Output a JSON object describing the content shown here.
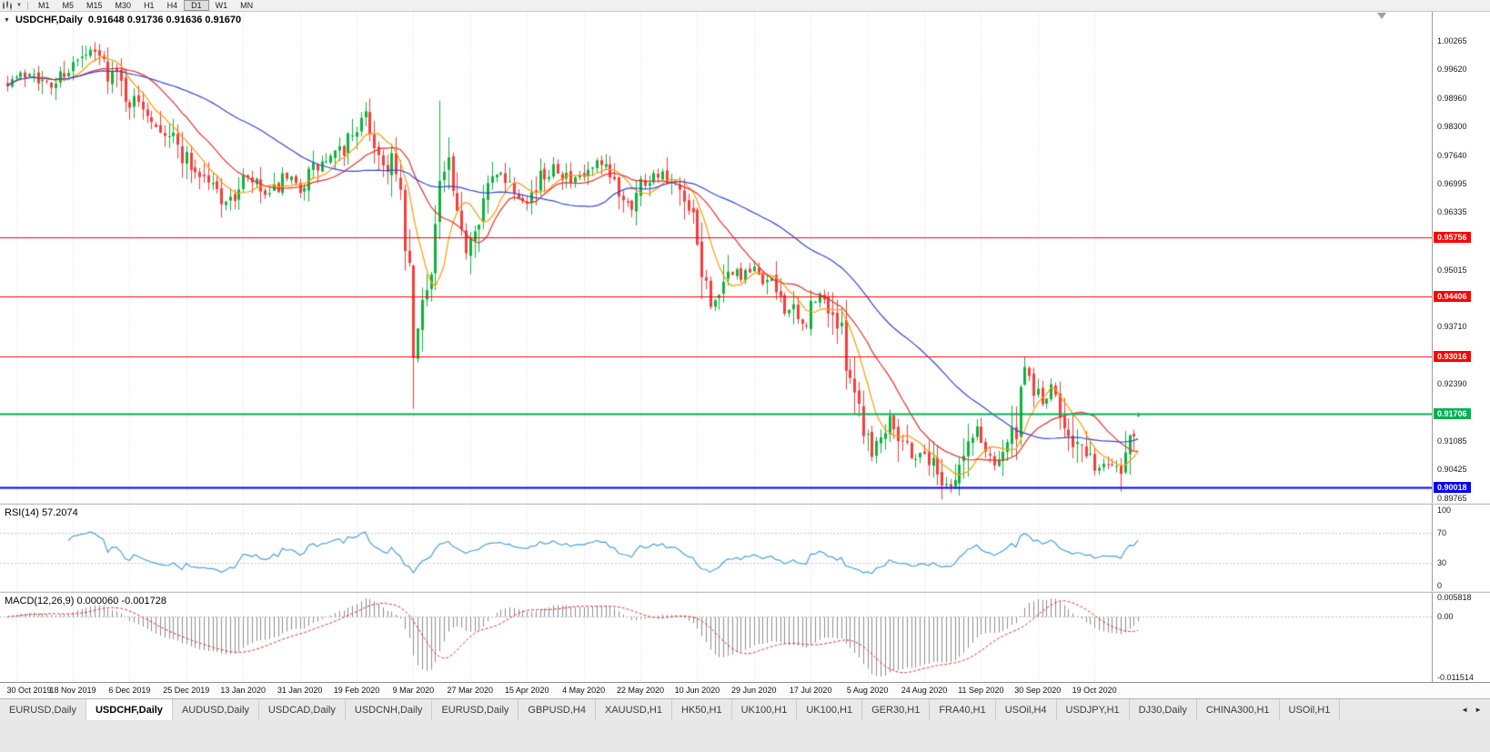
{
  "toolbar": {
    "periods": [
      "M1",
      "M5",
      "M15",
      "M30",
      "H1",
      "H4",
      "D1",
      "W1",
      "MN"
    ],
    "active_period": "D1"
  },
  "icons": {
    "collapse_arrow": "▼",
    "dropdown_arrow": "▼",
    "tab_scroll_left": "◄",
    "tab_scroll_right": "►"
  },
  "chart": {
    "title": "USDCHF,Daily",
    "ohlc_text": "0.91648 0.91736 0.91636 0.91670"
  },
  "price_axis": {
    "visible_ticks": [
      "1.00265",
      "0.99620",
      "0.98960",
      "0.98300",
      "0.97640",
      "0.96995",
      "0.96335",
      "0.95015",
      "0.93710",
      "0.92390",
      "0.91085",
      "0.90425",
      "0.89765"
    ]
  },
  "date_axis": [
    "30 Oct 2019",
    "18 Nov 2019",
    "6 Dec 2019",
    "25 Dec 2019",
    "13 Jan 2020",
    "31 Jan 2020",
    "19 Feb 2020",
    "9 Mar 2020",
    "27 Mar 2020",
    "15 Apr 2020",
    "4 May 2020",
    "22 May 2020",
    "10 Jun 2020",
    "29 Jun 2020",
    "17 Jul 2020",
    "5 Aug 2020",
    "24 Aug 2020",
    "11 Sep 2020",
    "30 Sep 2020",
    "19 Oct 2020"
  ],
  "rsi": {
    "label": "RSI(14) 57.2074",
    "value": 57.2074,
    "levels": [
      "100",
      "70",
      "30",
      "0"
    ]
  },
  "macd": {
    "label": "MACD(12,26,9) 0.000060 -0.001728",
    "axis_top": "0.005818",
    "axis_zero": "0.00",
    "axis_bottom": "-0.011514"
  },
  "tabs": {
    "items": [
      "EURUSD,Daily",
      "USDCHF,Daily",
      "AUDUSD,Daily",
      "USDCAD,Daily",
      "USDCNH,Daily",
      "EURUSD,Daily",
      "GBPUSD,H4",
      "XAUUSD,H1",
      "HK50,H1",
      "UK100,H1",
      "UK100,H1",
      "GER30,H1",
      "FRA40,H1",
      "USOil,H4",
      "USDJPY,H1",
      "DJ30,Daily",
      "CHINA300,H1",
      "USOil,H1"
    ],
    "active_index": 1
  },
  "chart_data": {
    "type": "candlestick",
    "symbol": "USDCHF",
    "timeframe": "Daily",
    "title": "USDCHF,Daily 0.91648 0.91736 0.91636 0.91670",
    "last_ohlc": {
      "open": 0.91648,
      "high": 0.91736,
      "low": 0.91636,
      "close": 0.9167
    },
    "num_candles": 260,
    "price_range": [
      0.8966,
      1.0094
    ],
    "candle_up_color": "#0db33c",
    "candle_down_color": "#f93b3b",
    "close_anchors": [
      [
        0,
        0.9935
      ],
      [
        4,
        0.995
      ],
      [
        6,
        0.9962
      ],
      [
        8,
        0.993
      ],
      [
        10,
        0.9922
      ],
      [
        13,
        0.996
      ],
      [
        16,
        0.9978
      ],
      [
        19,
        1.0
      ],
      [
        21,
        0.999
      ],
      [
        23,
        0.9958
      ],
      [
        25,
        0.9945
      ],
      [
        28,
        0.989
      ],
      [
        31,
        0.988
      ],
      [
        34,
        0.9845
      ],
      [
        37,
        0.9815
      ],
      [
        40,
        0.977
      ],
      [
        43,
        0.973
      ],
      [
        46,
        0.9705
      ],
      [
        49,
        0.967
      ],
      [
        51,
        0.9655
      ],
      [
        54,
        0.971
      ],
      [
        56,
        0.9703
      ],
      [
        58,
        0.968
      ],
      [
        60,
        0.9665
      ],
      [
        63,
        0.971
      ],
      [
        65,
        0.97
      ],
      [
        67,
        0.969
      ],
      [
        70,
        0.973
      ],
      [
        73,
        0.975
      ],
      [
        76,
        0.9765
      ],
      [
        78,
        0.98
      ],
      [
        80,
        0.9835
      ],
      [
        82,
        0.985
      ],
      [
        84,
        0.98
      ],
      [
        86,
        0.974
      ],
      [
        88,
        0.976
      ],
      [
        90,
        0.965
      ],
      [
        92,
        0.948
      ],
      [
        93,
        0.93
      ],
      [
        95,
        0.942
      ],
      [
        97,
        0.952
      ],
      [
        99,
        0.97
      ],
      [
        101,
        0.974
      ],
      [
        103,
        0.96
      ],
      [
        105,
        0.955
      ],
      [
        107,
        0.962
      ],
      [
        109,
        0.9665
      ],
      [
        111,
        0.97
      ],
      [
        113,
        0.973
      ],
      [
        115,
        0.97
      ],
      [
        117,
        0.968
      ],
      [
        119,
        0.9665
      ],
      [
        121,
        0.969
      ],
      [
        123,
        0.972
      ],
      [
        125,
        0.9745
      ],
      [
        127,
        0.973
      ],
      [
        129,
        0.97
      ],
      [
        131,
        0.971
      ],
      [
        133,
        0.972
      ],
      [
        135,
        0.9745
      ],
      [
        137,
        0.972
      ],
      [
        139,
        0.97
      ],
      [
        141,
        0.967
      ],
      [
        143,
        0.9655
      ],
      [
        145,
        0.97
      ],
      [
        147,
        0.9715
      ],
      [
        149,
        0.9725
      ],
      [
        151,
        0.97
      ],
      [
        153,
        0.9685
      ],
      [
        155,
        0.9645
      ],
      [
        157,
        0.96
      ],
      [
        158,
        0.955
      ],
      [
        160,
        0.9455
      ],
      [
        163,
        0.9425
      ],
      [
        166,
        0.9505
      ],
      [
        168,
        0.9485
      ],
      [
        171,
        0.95
      ],
      [
        174,
        0.9475
      ],
      [
        177,
        0.944
      ],
      [
        180,
        0.9395
      ],
      [
        182,
        0.937
      ],
      [
        184,
        0.941
      ],
      [
        186,
        0.944
      ],
      [
        188,
        0.942
      ],
      [
        190,
        0.938
      ],
      [
        193,
        0.927
      ],
      [
        196,
        0.915
      ],
      [
        198,
        0.909
      ],
      [
        200,
        0.912
      ],
      [
        202,
        0.917
      ],
      [
        205,
        0.911
      ],
      [
        208,
        0.907
      ],
      [
        210,
        0.9085
      ],
      [
        213,
        0.9035
      ],
      [
        216,
        0.9005
      ],
      [
        219,
        0.907
      ],
      [
        222,
        0.914
      ],
      [
        224,
        0.9085
      ],
      [
        226,
        0.906
      ],
      [
        228,
        0.909
      ],
      [
        231,
        0.913
      ],
      [
        233,
        0.926
      ],
      [
        235,
        0.9235
      ],
      [
        237,
        0.9195
      ],
      [
        239,
        0.9225
      ],
      [
        241,
        0.9175
      ],
      [
        243,
        0.914
      ],
      [
        245,
        0.91
      ],
      [
        247,
        0.9065
      ],
      [
        250,
        0.9045
      ],
      [
        253,
        0.906
      ],
      [
        255,
        0.905
      ],
      [
        256,
        0.9085
      ],
      [
        257,
        0.912
      ],
      [
        258,
        0.915
      ],
      [
        259,
        0.9167
      ]
    ],
    "forced_extremes": [
      {
        "i": 93,
        "low": 0.9182
      },
      {
        "i": 99,
        "high": 0.989
      },
      {
        "i": 216,
        "low": 0.8998
      },
      {
        "i": 233,
        "high": 0.93
      }
    ],
    "moving_averages": [
      {
        "period": 8,
        "color": "#ff9a00"
      },
      {
        "period": 18,
        "color": "#e43030"
      },
      {
        "period": 45,
        "color": "#3347cf"
      }
    ],
    "hlines": [
      {
        "value": 0.95756,
        "label": "0.95756",
        "color": "#ff0000",
        "line_width": 1
      },
      {
        "value": 0.94406,
        "label": "0.94406",
        "color": "#ff0000",
        "line_width": 1
      },
      {
        "value": 0.93016,
        "label": "0.93016",
        "color": "#ff0000",
        "line_width": 1
      },
      {
        "value": 0.91706,
        "label": "0.91706",
        "color": "#00b050",
        "line_width": 2
      },
      {
        "value": 0.90018,
        "label": "0.90018",
        "color": "#0000ff",
        "line_width": 2
      }
    ],
    "rsi_period": 14,
    "rsi_color": "#4aa0dc",
    "rsi_guides": [
      70,
      30
    ],
    "macd_params": [
      12,
      26,
      9
    ],
    "macd_hist_color": "#8c8c8c",
    "macd_signal_color": "#e03030"
  }
}
